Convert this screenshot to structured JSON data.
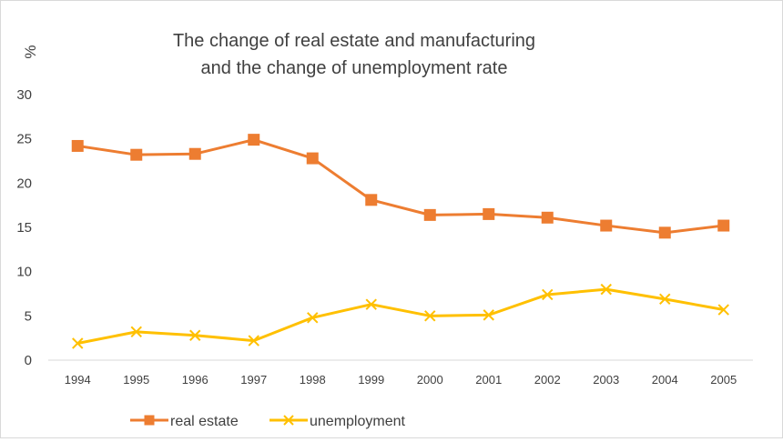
{
  "chart_data": {
    "type": "line",
    "title": [
      "The change of real estate and manufacturing",
      "and the change of unemployment rate"
    ],
    "ylabel": "%",
    "xlabel": "",
    "categories": [
      "1994",
      "1995",
      "1996",
      "1997",
      "1998",
      "1999",
      "2000",
      "2001",
      "2002",
      "2003",
      "2004",
      "2005"
    ],
    "ylim": [
      0,
      30
    ],
    "yticks": [
      0,
      5,
      10,
      15,
      20,
      25,
      30
    ],
    "grid": false,
    "legend_position": "bottom-left",
    "series": [
      {
        "name": "real estate",
        "color": "#ED7D31",
        "marker": "square",
        "values": [
          24.2,
          23.2,
          23.3,
          24.9,
          22.8,
          18.1,
          16.4,
          16.5,
          16.1,
          15.2,
          14.4,
          15.2
        ]
      },
      {
        "name": "unemployment",
        "color": "#FFC000",
        "marker": "x",
        "values": [
          1.9,
          3.2,
          2.8,
          2.2,
          4.8,
          6.3,
          5.0,
          5.1,
          7.4,
          8.0,
          6.9,
          5.7
        ]
      }
    ]
  }
}
